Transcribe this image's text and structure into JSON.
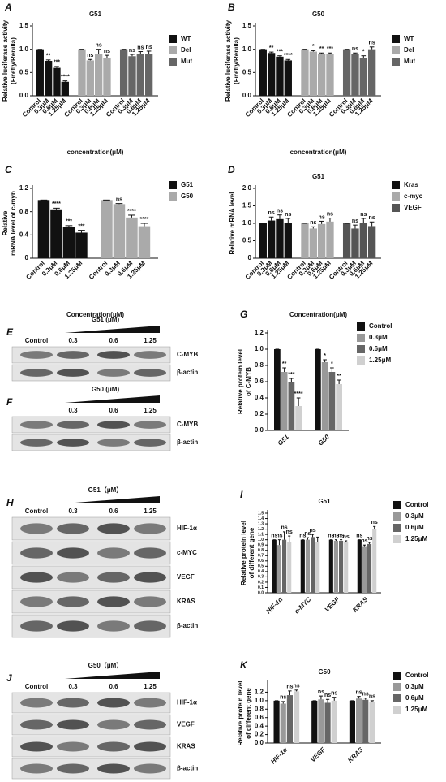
{
  "chart_data": [
    {
      "type": "clusterbar",
      "panel": "A",
      "title": "G51",
      "ylabel": [
        "Relative luciferase activity",
        "(Firefly/Renilla)"
      ],
      "xlabel": "concentration(μM)",
      "categories": [
        "Control",
        "0.3μM",
        "0.6μM",
        "1.25μM"
      ],
      "series": [
        {
          "name": "WT",
          "color": "#111111",
          "values": [
            1,
            0.75,
            0.6,
            0.3
          ],
          "errors": [
            0,
            0.02,
            0.03,
            0.02
          ],
          "annotations": [
            null,
            "**",
            "***",
            "****"
          ]
        },
        {
          "name": "Del",
          "color": "#aaaaaa",
          "values": [
            1,
            0.76,
            0.9,
            0.82
          ],
          "errors": [
            0,
            0.02,
            0.1,
            0.05
          ],
          "annotations": [
            null,
            "ns",
            "ns",
            "ns"
          ]
        },
        {
          "name": "Mut",
          "color": "#666666",
          "values": [
            1,
            0.85,
            0.9,
            0.9
          ],
          "errors": [
            0,
            0.04,
            0.05,
            0.06
          ],
          "annotations": [
            null,
            "ns",
            "ns",
            "ns"
          ]
        }
      ],
      "ylim": [
        0,
        1.5
      ],
      "yticks": [
        {
          "value": 0,
          "label": "0.0"
        },
        0.5,
        {
          "value": 1,
          "label": "1.0"
        },
        1.5
      ],
      "legend": "right"
    },
    {
      "type": "clusterbar",
      "panel": "B",
      "title": "G50",
      "ylabel": [
        "Relative luciferase activity",
        "(Firefly/Renilla)"
      ],
      "xlabel": "concentration(μM)",
      "categories": [
        "Control",
        "0.3μM",
        "0.6μM",
        "1.25μM"
      ],
      "series": [
        {
          "name": "WT",
          "color": "#111111",
          "values": [
            1,
            0.92,
            0.84,
            0.76
          ],
          "errors": [
            0,
            0.02,
            0.02,
            0.02
          ],
          "annotations": [
            null,
            "**",
            "***",
            "****"
          ]
        },
        {
          "name": "Del",
          "color": "#aaaaaa",
          "values": [
            1,
            0.95,
            0.9,
            0.9
          ],
          "errors": [
            0,
            0.02,
            0.02,
            0.02
          ],
          "annotations": [
            null,
            "*",
            "**",
            "***"
          ]
        },
        {
          "name": "Mut",
          "color": "#666666",
          "values": [
            1,
            0.9,
            0.82,
            1
          ],
          "errors": [
            0,
            0.02,
            0.04,
            0.05
          ],
          "annotations": [
            null,
            "ns",
            "*",
            "ns"
          ]
        }
      ],
      "ylim": [
        0,
        1.5
      ],
      "yticks": [
        {
          "value": 0,
          "label": "0.0"
        },
        0.5,
        {
          "value": 1,
          "label": "1.0"
        },
        1.5
      ],
      "legend": "right"
    },
    {
      "type": "clusterbar",
      "panel": "C",
      "ylabel": [
        "Relative",
        "mRNA level of c-myb"
      ],
      "xlabel": "Concentration(μM)",
      "categories": [
        "Control",
        "0.3μM",
        "0.6μM",
        "1.25μM"
      ],
      "series": [
        {
          "name": "G51",
          "color": "#111111",
          "values": [
            1,
            0.84,
            0.54,
            0.44
          ],
          "errors": [
            0,
            0.02,
            0.02,
            0.04
          ],
          "annotations": [
            null,
            "****",
            "***",
            "***"
          ]
        },
        {
          "name": "G50",
          "color": "#aaaaaa",
          "values": [
            1,
            0.93,
            0.7,
            0.55
          ],
          "errors": [
            0,
            0.01,
            0.04,
            0.05
          ],
          "annotations": [
            null,
            "ns",
            "****",
            "****"
          ]
        }
      ],
      "ylim": [
        0,
        1.2
      ],
      "yticks": [
        0,
        0.4,
        0.8,
        1.2
      ],
      "legend": "right"
    },
    {
      "type": "clusterbar",
      "panel": "D",
      "title": "G51",
      "ylabel": [
        "Relative mRNA level"
      ],
      "xlabel": "Concentration(μM)",
      "categories": [
        "Control",
        "0.3μM",
        "0.6μM",
        "1.25μM"
      ],
      "series": [
        {
          "name": "Kras",
          "color": "#111111",
          "values": [
            1,
            1.08,
            1.12,
            1.02
          ],
          "errors": [
            0,
            0.1,
            0.12,
            0.12
          ],
          "annotations": [
            null,
            "ns",
            "ns",
            "ns"
          ]
        },
        {
          "name": "c-myc",
          "color": "#aaaaaa",
          "values": [
            1,
            0.85,
            0.98,
            1.05
          ],
          "errors": [
            0,
            0.05,
            0.08,
            0.1
          ],
          "annotations": [
            null,
            "ns",
            "ns",
            "ns"
          ]
        },
        {
          "name": "VEGF",
          "color": "#555555",
          "values": [
            1,
            0.85,
            1.02,
            0.92
          ],
          "errors": [
            0,
            0.1,
            0.12,
            0.12
          ],
          "annotations": [
            null,
            "ns",
            "ns",
            "ns"
          ]
        }
      ],
      "ylim": [
        0,
        2
      ],
      "yticks": [
        0,
        0.5,
        {
          "value": 1,
          "label": "1.0"
        },
        1.5,
        {
          "value": 2,
          "label": "2.0"
        }
      ],
      "legend": "right"
    },
    {
      "type": "bar",
      "panel": "G",
      "ylabel": [
        "Relative protein level",
        "of C-MYB"
      ],
      "categories": [
        "G51",
        "G50"
      ],
      "series": [
        {
          "name": "Control",
          "color": "#111111",
          "values": [
            1,
            1
          ],
          "errors": [
            0,
            0
          ],
          "annotations": [
            null,
            null
          ]
        },
        {
          "name": "0.3μM",
          "color": "#999999",
          "values": [
            0.72,
            0.84
          ],
          "errors": [
            0.05,
            0.03
          ],
          "annotations": [
            "**",
            "*"
          ]
        },
        {
          "name": "0.6μM",
          "color": "#666666",
          "values": [
            0.59,
            0.72
          ],
          "errors": [
            0.05,
            0.05
          ],
          "annotations": [
            "***",
            "*"
          ]
        },
        {
          "name": "1.25μM",
          "color": "#d0d0d0",
          "values": [
            0.3,
            0.57
          ],
          "errors": [
            0.1,
            0.05
          ],
          "annotations": [
            "****",
            "**"
          ]
        }
      ],
      "ylim": [
        0,
        1.2
      ],
      "yticks": [
        {
          "value": 0,
          "label": "0.0"
        },
        0.2,
        0.4,
        0.6,
        0.8,
        {
          "value": 1,
          "label": "1.0"
        },
        1.2
      ],
      "legend": "right"
    },
    {
      "type": "bar",
      "panel": "I",
      "title": "G51",
      "ylabel": [
        "Relative protein level",
        "of different gene"
      ],
      "categories": [
        "HIF-1α",
        "c-MYC",
        "VEGF",
        "KRAS"
      ],
      "series": [
        {
          "name": "Control",
          "color": "#111111",
          "values": [
            1,
            1,
            1,
            1
          ],
          "errors": [
            0,
            0,
            0,
            0
          ],
          "annotations": [
            "ns",
            "ns",
            "ns",
            "ns"
          ]
        },
        {
          "name": "0.3μM",
          "color": "#999999",
          "values": [
            0.9,
            1,
            0.98,
            0.88
          ],
          "errors": [
            0.1,
            0.04,
            0.02,
            0.02
          ],
          "annotations": [
            "ns",
            "ns",
            "ns",
            "ns"
          ]
        },
        {
          "name": "0.6μM",
          "color": "#666666",
          "values": [
            1,
            1.05,
            0.98,
            0.92
          ],
          "errors": [
            0.15,
            0.05,
            0.02,
            0.03
          ],
          "annotations": [
            "ns",
            "ns",
            "ns",
            "ns"
          ]
        },
        {
          "name": "1.25μM",
          "color": "#d0d0d0",
          "values": [
            0.95,
            0.95,
            0.95,
            1.2
          ],
          "errors": [
            0.12,
            0.1,
            0.03,
            0.05
          ],
          "annotations": [
            "ns",
            null,
            "ns",
            "ns"
          ]
        }
      ],
      "ylim": [
        0,
        1.5
      ],
      "yticks": [
        {
          "value": 0,
          "label": "0.0"
        },
        0.1,
        0.2,
        0.3,
        0.4,
        0.5,
        0.6,
        0.7,
        0.8,
        0.9,
        {
          "value": 1,
          "label": "1.0"
        },
        1.1,
        1.2,
        1.3,
        1.4,
        1.5
      ],
      "legend": "right"
    },
    {
      "type": "bar",
      "panel": "K",
      "title": "G50",
      "ylabel": [
        "Relative protein level",
        "of different gene"
      ],
      "categories": [
        "HIF-1α",
        "VEGF",
        "KRAS"
      ],
      "series": [
        {
          "name": "Control",
          "color": "#111111",
          "values": [
            1,
            1,
            1
          ],
          "errors": [
            0,
            0,
            0
          ],
          "annotations": [
            null,
            null,
            null
          ]
        },
        {
          "name": "0.3μM",
          "color": "#999999",
          "values": [
            0.93,
            1.03,
            1.05
          ],
          "errors": [
            0.05,
            0.08,
            0.05
          ],
          "annotations": [
            "ns",
            "ns",
            "ns"
          ]
        },
        {
          "name": "0.6μM",
          "color": "#666666",
          "values": [
            1.13,
            0.95,
            1.02
          ],
          "errors": [
            0.1,
            0.08,
            0.04
          ],
          "annotations": [
            "ns",
            "ns",
            "ns"
          ]
        },
        {
          "name": "1.25μM",
          "color": "#d0d0d0",
          "values": [
            1.22,
            1,
            0.97
          ],
          "errors": [
            0.03,
            0.08,
            0.03
          ],
          "annotations": [
            "ns",
            "ns",
            "ns"
          ]
        }
      ],
      "ylim": [
        0,
        1.4
      ],
      "yticks": [
        {
          "value": 0,
          "label": "0.0"
        },
        0.2,
        0.4,
        0.6,
        0.8,
        {
          "value": 1,
          "label": "1.0"
        },
        1.2
      ],
      "legend": "right"
    }
  ],
  "blots": [
    {
      "panel": "E",
      "treatment": "G51 (μM)",
      "lanes": [
        "Control",
        "0.3",
        "0.6",
        "1.25"
      ],
      "rows": [
        "C-MYB",
        "β-actin"
      ]
    },
    {
      "panel": "F",
      "treatment": "G50 (μM)",
      "lanes": [
        "0.3",
        "0.6",
        "1.25"
      ],
      "rows": [
        "C-MYB",
        "β-actin"
      ]
    },
    {
      "panel": "H",
      "treatment": "G51（μM）",
      "lanes": [
        "Control",
        "0.3",
        "0.6",
        "1.25"
      ],
      "rows": [
        "HIF-1α",
        "c-MYC",
        "VEGF",
        "KRAS",
        "β-actin"
      ]
    },
    {
      "panel": "J",
      "treatment": "G50（μM）",
      "lanes": [
        "Control",
        "0.3",
        "0.6",
        "1.25"
      ],
      "rows": [
        "HIF-1α",
        "VEGF",
        "KRAS",
        "β-actin"
      ]
    }
  ]
}
